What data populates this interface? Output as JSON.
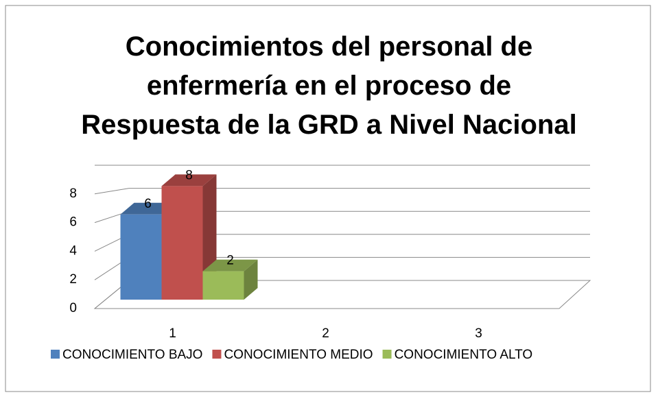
{
  "chart_data": {
    "type": "bar3d",
    "title": "Conocimientos del personal de\nenfermería en el proceso de\nRespuesta de la GRD a Nivel Nacional",
    "categories": [
      "1",
      "2",
      "3"
    ],
    "series": [
      {
        "name": "CONOCIMIENTO BAJO",
        "color": "#4f81bd",
        "values": [
          6,
          null,
          null
        ]
      },
      {
        "name": "CONOCIMIENTO MEDIO",
        "color": "#c0504d",
        "values": [
          8,
          null,
          null
        ]
      },
      {
        "name": "CONOCIMIENTO ALTO",
        "color": "#9bbb59",
        "values": [
          2,
          null,
          null
        ]
      }
    ],
    "ylim": [
      0,
      10
    ],
    "yticks": [
      0,
      2,
      4,
      6,
      8
    ],
    "grid": true,
    "legend": "bottom"
  }
}
